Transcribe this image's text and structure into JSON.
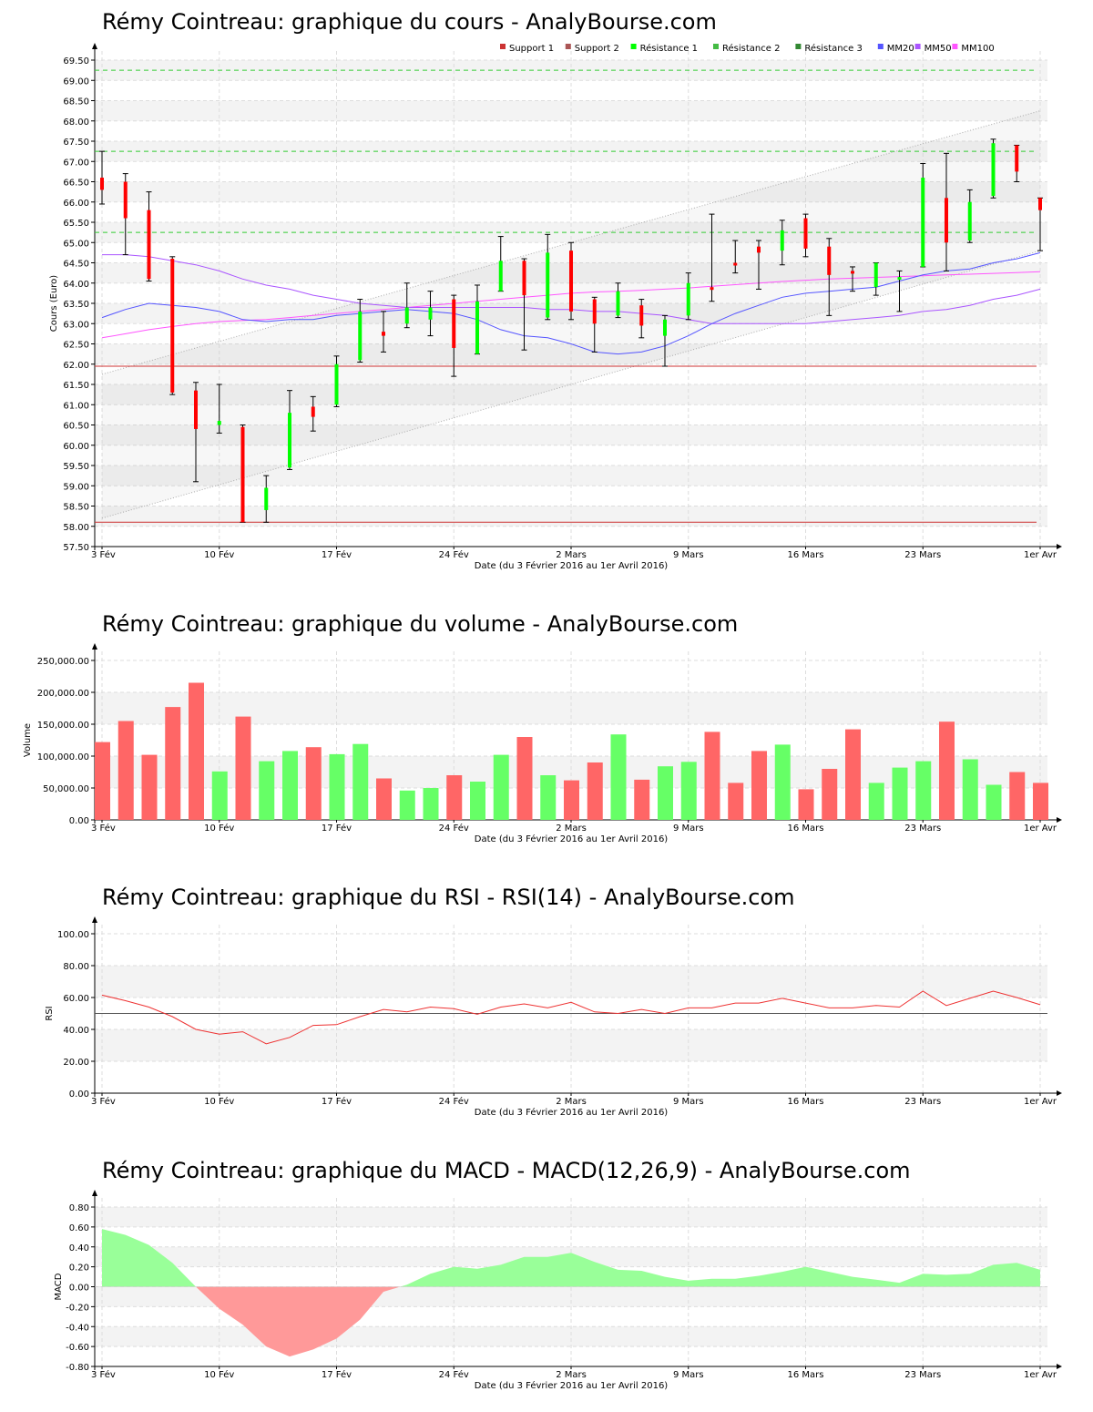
{
  "titles": {
    "price": "Rémy Cointreau: graphique du cours - AnalyBourse.com",
    "volume": "Rémy Cointreau: graphique du volume - AnalyBourse.com",
    "rsi": "Rémy Cointreau: graphique du RSI - RSI(14) - AnalyBourse.com",
    "macd": "Rémy Cointreau: graphique du MACD - MACD(12,26,9) - AnalyBourse.com"
  },
  "colors": {
    "up": "#00ff00",
    "down": "#ff0000",
    "vol_up": "#66ff66",
    "vol_down": "#ff6666",
    "support": "#cc3333",
    "resistance": "#33cc33",
    "mm20": "#5555ff",
    "mm50": "#aa55ff",
    "mm100": "#ff55ff",
    "rsi": "#ee3333",
    "macd_pos": "#99ff99",
    "macd_neg": "#ff9999"
  },
  "chart_data": [
    {
      "type": "candlestick",
      "xlabel": "Date (du 3 Février 2016 au 1er Avril 2016)",
      "ylabel": "Cours (Euro)",
      "ylim": [
        57.5,
        69.5
      ],
      "x_ticks": [
        {
          "index": 0,
          "label": "3 Fév"
        },
        {
          "index": 5,
          "label": "10 Fév"
        },
        {
          "index": 10,
          "label": "17 Fév"
        },
        {
          "index": 15,
          "label": "24 Fév"
        },
        {
          "index": 20,
          "label": "2 Mars"
        },
        {
          "index": 25,
          "label": "9 Mars"
        },
        {
          "index": 30,
          "label": "16 Mars"
        },
        {
          "index": 35,
          "label": "23 Mars"
        },
        {
          "index": 40,
          "label": "1er Avr"
        }
      ],
      "y_ticks": [
        57.5,
        58.0,
        58.5,
        59.0,
        59.5,
        60.0,
        60.5,
        61.0,
        61.5,
        62.0,
        62.5,
        63.0,
        63.5,
        64.0,
        64.5,
        65.0,
        65.5,
        66.0,
        66.5,
        67.0,
        67.5,
        68.0,
        68.5,
        69.0,
        69.5
      ],
      "legend": [
        "Support 1",
        "Support 2",
        "Résistance 1",
        "Résistance 2",
        "Résistance 3",
        "MM20",
        "MM50",
        "MM100"
      ],
      "legend_position": "top-right",
      "candles": [
        {
          "o": 66.6,
          "h": 67.25,
          "l": 65.95,
          "c": 66.3
        },
        {
          "o": 66.5,
          "h": 66.7,
          "l": 64.7,
          "c": 65.6
        },
        {
          "o": 65.8,
          "h": 66.25,
          "l": 64.05,
          "c": 64.1
        },
        {
          "o": 64.6,
          "h": 64.65,
          "l": 61.25,
          "c": 61.3
        },
        {
          "o": 61.35,
          "h": 61.55,
          "l": 59.1,
          "c": 60.4
        },
        {
          "o": 60.5,
          "h": 61.5,
          "l": 60.3,
          "c": 60.6
        },
        {
          "o": 60.45,
          "h": 60.5,
          "l": 58.1,
          "c": 58.1
        },
        {
          "o": 58.4,
          "h": 59.25,
          "l": 58.1,
          "c": 58.95
        },
        {
          "o": 59.45,
          "h": 61.35,
          "l": 59.4,
          "c": 60.8
        },
        {
          "o": 60.95,
          "h": 61.2,
          "l": 60.35,
          "c": 60.7
        },
        {
          "o": 61.0,
          "h": 62.2,
          "l": 60.95,
          "c": 62.0
        },
        {
          "o": 62.1,
          "h": 63.6,
          "l": 62.05,
          "c": 63.3
        },
        {
          "o": 62.8,
          "h": 63.3,
          "l": 62.3,
          "c": 62.7
        },
        {
          "o": 63.0,
          "h": 64.0,
          "l": 62.9,
          "c": 63.4
        },
        {
          "o": 63.1,
          "h": 63.8,
          "l": 62.7,
          "c": 63.4
        },
        {
          "o": 63.6,
          "h": 63.7,
          "l": 61.7,
          "c": 62.4
        },
        {
          "o": 62.25,
          "h": 63.95,
          "l": 62.25,
          "c": 63.55
        },
        {
          "o": 63.8,
          "h": 65.15,
          "l": 63.8,
          "c": 64.55
        },
        {
          "o": 64.55,
          "h": 64.6,
          "l": 62.35,
          "c": 63.7
        },
        {
          "o": 63.15,
          "h": 65.2,
          "l": 63.1,
          "c": 64.75
        },
        {
          "o": 64.8,
          "h": 65.0,
          "l": 63.1,
          "c": 63.3
        },
        {
          "o": 63.6,
          "h": 63.65,
          "l": 62.3,
          "c": 63.0
        },
        {
          "o": 63.2,
          "h": 64.0,
          "l": 63.15,
          "c": 63.8
        },
        {
          "o": 63.45,
          "h": 63.6,
          "l": 62.65,
          "c": 62.95
        },
        {
          "o": 62.7,
          "h": 63.2,
          "l": 61.95,
          "c": 63.1
        },
        {
          "o": 63.2,
          "h": 64.25,
          "l": 63.1,
          "c": 64.0
        },
        {
          "o": 63.9,
          "h": 65.7,
          "l": 63.55,
          "c": 63.85
        },
        {
          "o": 64.5,
          "h": 65.05,
          "l": 64.25,
          "c": 64.45
        },
        {
          "o": 64.9,
          "h": 65.05,
          "l": 63.85,
          "c": 64.75
        },
        {
          "o": 64.8,
          "h": 65.55,
          "l": 64.45,
          "c": 65.3
        },
        {
          "o": 65.6,
          "h": 65.7,
          "l": 64.65,
          "c": 64.85
        },
        {
          "o": 64.9,
          "h": 65.1,
          "l": 63.2,
          "c": 64.2
        },
        {
          "o": 64.3,
          "h": 64.4,
          "l": 63.8,
          "c": 64.25
        },
        {
          "o": 63.9,
          "h": 64.5,
          "l": 63.7,
          "c": 64.5
        },
        {
          "o": 64.1,
          "h": 64.3,
          "l": 63.3,
          "c": 64.15
        },
        {
          "o": 64.4,
          "h": 66.95,
          "l": 64.4,
          "c": 66.6
        },
        {
          "o": 66.1,
          "h": 67.2,
          "l": 64.3,
          "c": 65.0
        },
        {
          "o": 65.05,
          "h": 66.3,
          "l": 65.0,
          "c": 66.0
        },
        {
          "o": 66.15,
          "h": 67.55,
          "l": 66.1,
          "c": 67.45
        },
        {
          "o": 67.4,
          "h": 67.4,
          "l": 66.5,
          "c": 66.75
        },
        {
          "o": 66.1,
          "h": 66.1,
          "l": 64.8,
          "c": 65.8
        }
      ],
      "support_levels": [
        61.95,
        58.1
      ],
      "resistance_levels": [
        65.25,
        67.25,
        69.25
      ],
      "trend_channel": {
        "lower": [
          [
            0,
            58.2
          ],
          [
            40,
            64.8
          ]
        ],
        "upper": [
          [
            0,
            61.75
          ],
          [
            40,
            68.25
          ]
        ]
      },
      "mm20": [
        [
          0,
          63.15
        ],
        [
          1,
          63.35
        ],
        [
          2,
          63.5
        ],
        [
          3,
          63.45
        ],
        [
          4,
          63.4
        ],
        [
          5,
          63.3
        ],
        [
          6,
          63.1
        ],
        [
          7,
          63.05
        ],
        [
          8,
          63.1
        ],
        [
          9,
          63.1
        ],
        [
          10,
          63.2
        ],
        [
          11,
          63.25
        ],
        [
          12,
          63.3
        ],
        [
          13,
          63.35
        ],
        [
          14,
          63.3
        ],
        [
          15,
          63.25
        ],
        [
          16,
          63.1
        ],
        [
          17,
          62.85
        ],
        [
          18,
          62.7
        ],
        [
          19,
          62.65
        ],
        [
          20,
          62.5
        ],
        [
          21,
          62.3
        ],
        [
          22,
          62.25
        ],
        [
          23,
          62.3
        ],
        [
          24,
          62.45
        ],
        [
          25,
          62.7
        ],
        [
          26,
          63.0
        ],
        [
          27,
          63.25
        ],
        [
          28,
          63.45
        ],
        [
          29,
          63.65
        ],
        [
          30,
          63.75
        ],
        [
          31,
          63.8
        ],
        [
          32,
          63.85
        ],
        [
          33,
          63.9
        ],
        [
          34,
          64.05
        ],
        [
          35,
          64.2
        ],
        [
          36,
          64.3
        ],
        [
          37,
          64.35
        ],
        [
          38,
          64.5
        ],
        [
          39,
          64.6
        ],
        [
          40,
          64.75
        ]
      ],
      "mm50": [
        [
          0,
          64.7
        ],
        [
          1,
          64.7
        ],
        [
          2,
          64.65
        ],
        [
          3,
          64.55
        ],
        [
          4,
          64.45
        ],
        [
          5,
          64.3
        ],
        [
          6,
          64.1
        ],
        [
          7,
          63.95
        ],
        [
          8,
          63.85
        ],
        [
          9,
          63.7
        ],
        [
          10,
          63.6
        ],
        [
          11,
          63.5
        ],
        [
          12,
          63.45
        ],
        [
          13,
          63.4
        ],
        [
          14,
          63.4
        ],
        [
          15,
          63.4
        ],
        [
          16,
          63.4
        ],
        [
          17,
          63.4
        ],
        [
          18,
          63.4
        ],
        [
          19,
          63.35
        ],
        [
          20,
          63.35
        ],
        [
          21,
          63.3
        ],
        [
          22,
          63.3
        ],
        [
          23,
          63.25
        ],
        [
          24,
          63.2
        ],
        [
          25,
          63.1
        ],
        [
          26,
          63.0
        ],
        [
          27,
          63.0
        ],
        [
          28,
          63.0
        ],
        [
          29,
          63.0
        ],
        [
          30,
          63.0
        ],
        [
          31,
          63.05
        ],
        [
          32,
          63.1
        ],
        [
          33,
          63.15
        ],
        [
          34,
          63.2
        ],
        [
          35,
          63.3
        ],
        [
          36,
          63.35
        ],
        [
          37,
          63.45
        ],
        [
          38,
          63.6
        ],
        [
          39,
          63.7
        ],
        [
          40,
          63.85
        ]
      ],
      "mm100": [
        [
          0,
          62.65
        ],
        [
          1,
          62.75
        ],
        [
          2,
          62.85
        ],
        [
          3,
          62.93
        ],
        [
          4,
          63.0
        ],
        [
          5,
          63.05
        ],
        [
          6,
          63.08
        ],
        [
          7,
          63.1
        ],
        [
          8,
          63.15
        ],
        [
          9,
          63.2
        ],
        [
          10,
          63.25
        ],
        [
          11,
          63.3
        ],
        [
          12,
          63.35
        ],
        [
          13,
          63.4
        ],
        [
          14,
          63.45
        ],
        [
          15,
          63.5
        ],
        [
          16,
          63.55
        ],
        [
          17,
          63.6
        ],
        [
          18,
          63.65
        ],
        [
          19,
          63.7
        ],
        [
          20,
          63.75
        ],
        [
          21,
          63.78
        ],
        [
          22,
          63.8
        ],
        [
          23,
          63.82
        ],
        [
          24,
          63.85
        ],
        [
          25,
          63.88
        ],
        [
          26,
          63.92
        ],
        [
          27,
          63.96
        ],
        [
          28,
          64.0
        ],
        [
          29,
          64.04
        ],
        [
          30,
          64.07
        ],
        [
          31,
          64.1
        ],
        [
          32,
          64.12
        ],
        [
          33,
          64.14
        ],
        [
          34,
          64.16
        ],
        [
          35,
          64.18
        ],
        [
          36,
          64.2
        ],
        [
          37,
          64.22
        ],
        [
          38,
          64.24
        ],
        [
          39,
          64.26
        ],
        [
          40,
          64.28
        ]
      ]
    },
    {
      "type": "bar",
      "xlabel": "Date (du 3 Février 2016 au 1er Avril 2016)",
      "ylabel": "Volume",
      "ylim": [
        0,
        250000
      ],
      "y_ticks": [
        {
          "value": 0,
          "label": "0.00"
        },
        {
          "value": 50000,
          "label": "50,000.00"
        },
        {
          "value": 100000,
          "label": "100,000.00"
        },
        {
          "value": 150000,
          "label": "150,000.00"
        },
        {
          "value": 200000,
          "label": "200,000.00"
        },
        {
          "value": 250000,
          "label": "250,000.00"
        }
      ],
      "values": [
        122000,
        155000,
        102000,
        177000,
        215000,
        76000,
        162000,
        92000,
        108000,
        114000,
        103000,
        119000,
        65000,
        46000,
        50000,
        70000,
        60000,
        102000,
        130000,
        70000,
        62000,
        90000,
        134000,
        63000,
        84000,
        91000,
        138000,
        58000,
        108000,
        118000,
        48000,
        80000,
        142000,
        58000,
        82000,
        92000,
        154000,
        95000,
        55000,
        75000,
        58000
      ]
    },
    {
      "type": "line",
      "xlabel": "Date (du 3 Février 2016 au 1er Avril 2016)",
      "ylabel": "RSI",
      "ylim": [
        0,
        100
      ],
      "y_ticks": [
        {
          "value": 0,
          "label": "0.00"
        },
        {
          "value": 20,
          "label": "20.00"
        },
        {
          "value": 40,
          "label": "40.00"
        },
        {
          "value": 60,
          "label": "60.00"
        },
        {
          "value": 80,
          "label": "80.00"
        },
        {
          "value": 100,
          "label": "100.00"
        }
      ],
      "reference_line": 50,
      "values": [
        61.5,
        58,
        54,
        48,
        40,
        37,
        38.5,
        31,
        35,
        42.5,
        43,
        48,
        52.5,
        51,
        54,
        53,
        49.5,
        54,
        56,
        53.5,
        57,
        51,
        50,
        52.5,
        50,
        53.5,
        53.5,
        56.5,
        56.5,
        59.5,
        56.5,
        53.5,
        53.5,
        55,
        54,
        64,
        55,
        59.5,
        64,
        60,
        55.5
      ]
    },
    {
      "type": "area",
      "xlabel": "Date (du 3 Février 2016 au 1er Avril 2016)",
      "ylabel": "MACD",
      "ylim": [
        -0.8,
        0.8
      ],
      "y_ticks": [
        {
          "value": -0.8,
          "label": "-0.80"
        },
        {
          "value": -0.6,
          "label": "-0.60"
        },
        {
          "value": -0.4,
          "label": "-0.40"
        },
        {
          "value": -0.2,
          "label": "-0.20"
        },
        {
          "value": 0,
          "label": "0.00"
        },
        {
          "value": 0.2,
          "label": "0.20"
        },
        {
          "value": 0.4,
          "label": "0.40"
        },
        {
          "value": 0.6,
          "label": "0.60"
        },
        {
          "value": 0.8,
          "label": "0.80"
        }
      ],
      "values": [
        0.58,
        0.52,
        0.42,
        0.24,
        0.0,
        -0.22,
        -0.38,
        -0.6,
        -0.7,
        -0.63,
        -0.52,
        -0.33,
        -0.05,
        0.02,
        0.13,
        0.2,
        0.18,
        0.22,
        0.3,
        0.3,
        0.34,
        0.25,
        0.17,
        0.16,
        0.1,
        0.06,
        0.08,
        0.08,
        0.11,
        0.15,
        0.2,
        0.15,
        0.1,
        0.07,
        0.04,
        0.13,
        0.12,
        0.13,
        0.22,
        0.24,
        0.17
      ]
    }
  ]
}
